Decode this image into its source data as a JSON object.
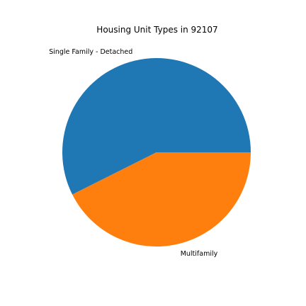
{
  "chart_data": {
    "type": "pie",
    "title": "Housing Unit Types in 92107",
    "categories": [
      "Single Family - Detached",
      "Multifamily"
    ],
    "values": [
      57.4,
      42.6
    ],
    "colors": [
      "#1f77b4",
      "#ff7f0e"
    ],
    "start_angle_deg": 0,
    "direction": "counterclockwise"
  }
}
